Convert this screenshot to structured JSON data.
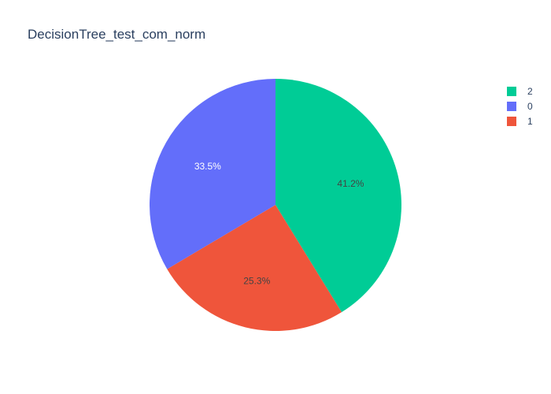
{
  "chart_data": {
    "type": "pie",
    "title": "DecisionTree_test_com_norm",
    "slices": [
      {
        "label": "2",
        "percent": 41.2,
        "percent_text": "41.2%",
        "color": "#00cc96",
        "text_color": "#444444"
      },
      {
        "label": "1",
        "percent": 25.3,
        "percent_text": "25.3%",
        "color": "#ef553b",
        "text_color": "#444444"
      },
      {
        "label": "0",
        "percent": 33.5,
        "percent_text": "33.5%",
        "color": "#636efa",
        "text_color": "#ffffff"
      }
    ],
    "legend_order": [
      "2",
      "0",
      "1"
    ],
    "direction": "clockwise",
    "start": "top",
    "legend_position": "top-right"
  }
}
